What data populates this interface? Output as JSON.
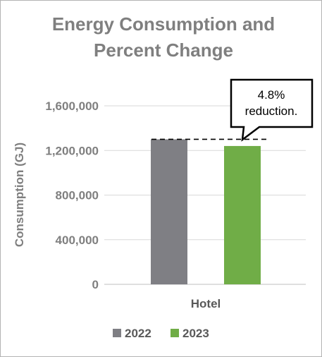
{
  "chart_data": {
    "type": "bar",
    "title": [
      "Energy Consumption and",
      "Percent Change"
    ],
    "ylabel": "Consumption (GJ)",
    "xlabel": "",
    "categories": [
      "Hotel"
    ],
    "series": [
      {
        "name": "2022",
        "values": [
          1300000
        ],
        "color": "#7f7f84"
      },
      {
        "name": "2023",
        "values": [
          1240000
        ],
        "color": "#70ad47"
      }
    ],
    "ylim": [
      0,
      1600000
    ],
    "yticks": [
      0,
      400000,
      800000,
      1200000,
      1600000
    ],
    "ytick_labels": [
      "0",
      "400,000",
      "800,000",
      "1,200,000",
      "1,600,000"
    ],
    "grid": true,
    "legend_position": "bottom",
    "annotation": {
      "lines": [
        "4.8%",
        "reduction."
      ],
      "value": 1300000
    }
  }
}
